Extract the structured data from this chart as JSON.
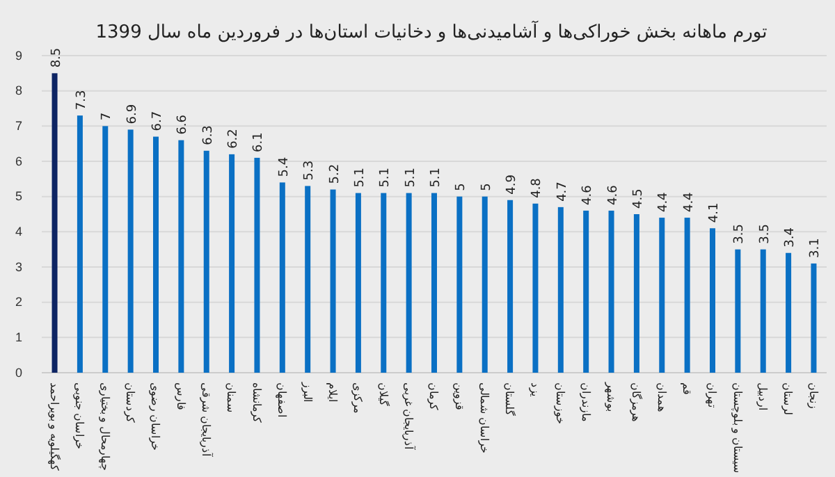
{
  "chart_data": {
    "type": "bar",
    "title": "تورم ماهانه بخش خوراکی‌ها و آشامیدنی‌ها و دخانیات استان‌ها در فروردین ماه سال 1399",
    "categories": [
      "کهگیلویه و بویراحمد",
      "خراسان جنوبی",
      "چهارمحال و بختیاری",
      "کردستان",
      "خراسان رضوی",
      "فارس",
      "آذربایجان شرقی",
      "سمنان",
      "کرمانشاه",
      "اصفهان",
      "البرز",
      "ایلام",
      "مرکزی",
      "گیلان",
      "آذربایجان غربی",
      "کرمان",
      "قزوین",
      "خراسان شمالی",
      "گلستان",
      "یزد",
      "خوزستان",
      "مازندران",
      "بوشهر",
      "هرمزگان",
      "همدان",
      "قم",
      "تهران",
      "سیستان و بلوچستان",
      "اردبیل",
      "لرستان",
      "زنجان"
    ],
    "values": [
      8.5,
      7.3,
      7,
      6.9,
      6.7,
      6.6,
      6.3,
      6.2,
      6.1,
      5.4,
      5.3,
      5.2,
      5.1,
      5.1,
      5.1,
      5.1,
      5,
      5,
      4.9,
      4.8,
      4.7,
      4.6,
      4.6,
      4.5,
      4.4,
      4.4,
      4.1,
      3.5,
      3.5,
      3.4,
      3.1
    ],
    "colors": [
      "#0d2463",
      "#0a70c4",
      "#0a70c4",
      "#0a70c4",
      "#0a70c4",
      "#0a70c4",
      "#0a70c4",
      "#0a70c4",
      "#0a70c4",
      "#0a70c4",
      "#0a70c4",
      "#0a70c4",
      "#0a70c4",
      "#0a70c4",
      "#0a70c4",
      "#0a70c4",
      "#0a70c4",
      "#0a70c4",
      "#0a70c4",
      "#0a70c4",
      "#0a70c4",
      "#0a70c4",
      "#0a70c4",
      "#0a70c4",
      "#0a70c4",
      "#0a70c4",
      "#0a70c4",
      "#0a70c4",
      "#0a70c4",
      "#0a70c4",
      "#0a70c4"
    ],
    "ylim": [
      0,
      9
    ],
    "yticks": [
      0,
      1,
      2,
      3,
      4,
      5,
      6,
      7,
      8,
      9
    ],
    "grid": "y",
    "data_labels": true
  }
}
